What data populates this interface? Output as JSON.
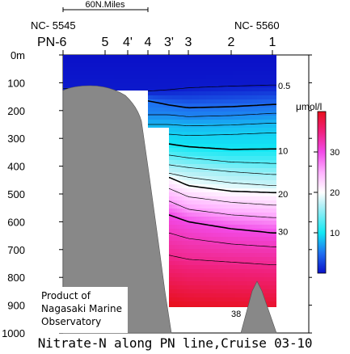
{
  "chart_data": {
    "type": "heatmap",
    "title": "Nitrate-N along PN line,Cruise 03-10",
    "scale_bar_label": "60N.Miles",
    "left_station_id": "NC- 5545",
    "right_station_id": "NC- 5560",
    "line_prefix": "PN-",
    "stations": [
      "6",
      "5",
      "4'",
      "4",
      "3'",
      "3",
      "2",
      "1"
    ],
    "depth_ticks": [
      {
        "value": 0,
        "label": "0m"
      },
      {
        "value": 100,
        "label": "100"
      },
      {
        "value": 200,
        "label": "200"
      },
      {
        "value": 300,
        "label": "300"
      },
      {
        "value": 400,
        "label": "400"
      },
      {
        "value": 500,
        "label": "500"
      },
      {
        "value": 600,
        "label": "600"
      },
      {
        "value": 700,
        "label": "700"
      },
      {
        "value": 800,
        "label": "800"
      },
      {
        "value": 900,
        "label": "900"
      },
      {
        "value": 1000,
        "label": "1000"
      }
    ],
    "ylim": [
      0,
      1000
    ],
    "contour_labels": [
      {
        "text": "0.5",
        "depth": 110
      },
      {
        "text": "10",
        "depth": 345
      },
      {
        "text": "20",
        "depth": 500
      },
      {
        "text": "30",
        "depth": 635
      }
    ],
    "bottom_value_label": "38",
    "colorbar": {
      "unit": "μmol/l",
      "range": [
        0,
        40
      ],
      "tick_labels": [
        {
          "value": 30,
          "label": "30"
        },
        {
          "value": 20,
          "label": "20"
        },
        {
          "value": 10,
          "label": "10"
        }
      ],
      "colors": {
        "c0": "#0a10c8",
        "c5": "#1f6ef0",
        "c10": "#12e8f4",
        "c17": "#b4f0f6",
        "c20": "#ffffff",
        "c25": "#ffb4ff",
        "c30": "#f24ae8",
        "c35": "#f0207a",
        "c40": "#e8101c"
      }
    },
    "isolines": [
      {
        "value": 0.5,
        "bold": false,
        "depths": [
          120,
          125,
          132,
          130,
          125,
          118,
          112,
          108
        ]
      },
      {
        "value": 5,
        "bold": true,
        "depths": [
          null,
          null,
          150,
          165,
          180,
          190,
          186,
          178
        ]
      },
      {
        "value": 6,
        "bold": false,
        "depths": [
          null,
          null,
          null,
          null,
          215,
          222,
          218,
          210
        ]
      },
      {
        "value": 8,
        "bold": false,
        "depths": [
          null,
          null,
          null,
          null,
          250,
          255,
          252,
          245
        ]
      },
      {
        "value": 9,
        "bold": false,
        "depths": [
          null,
          null,
          null,
          null,
          285,
          290,
          286,
          280
        ]
      },
      {
        "value": 10,
        "bold": true,
        "depths": [
          null,
          null,
          null,
          null,
          320,
          330,
          340,
          338
        ]
      },
      {
        "value": 13,
        "bold": false,
        "depths": [
          null,
          null,
          null,
          null,
          360,
          370,
          385,
          390
        ]
      },
      {
        "value": 16,
        "bold": false,
        "depths": [
          null,
          null,
          null,
          null,
          395,
          405,
          420,
          430
        ]
      },
      {
        "value": 18,
        "bold": false,
        "depths": [
          null,
          null,
          null,
          null,
          425,
          440,
          460,
          470
        ]
      },
      {
        "value": 20,
        "bold": true,
        "depths": [
          null,
          null,
          null,
          null,
          440,
          470,
          490,
          495
        ]
      },
      {
        "value": 23,
        "bold": false,
        "depths": [
          null,
          null,
          null,
          null,
          480,
          510,
          530,
          540
        ]
      },
      {
        "value": 26,
        "bold": false,
        "depths": [
          null,
          null,
          null,
          null,
          525,
          555,
          575,
          585
        ]
      },
      {
        "value": 30,
        "bold": true,
        "depths": [
          null,
          null,
          null,
          null,
          575,
          600,
          625,
          640
        ]
      },
      {
        "value": 32,
        "bold": false,
        "depths": [
          null,
          null,
          null,
          null,
          640,
          660,
          680,
          690
        ]
      },
      {
        "value": 34,
        "bold": false,
        "depths": [
          null,
          null,
          null,
          null,
          720,
          735,
          745,
          755
        ]
      }
    ]
  },
  "credit": {
    "line1": "Product of",
    "line2": "Nagasaki Marine",
    "line3": "Observatory"
  }
}
